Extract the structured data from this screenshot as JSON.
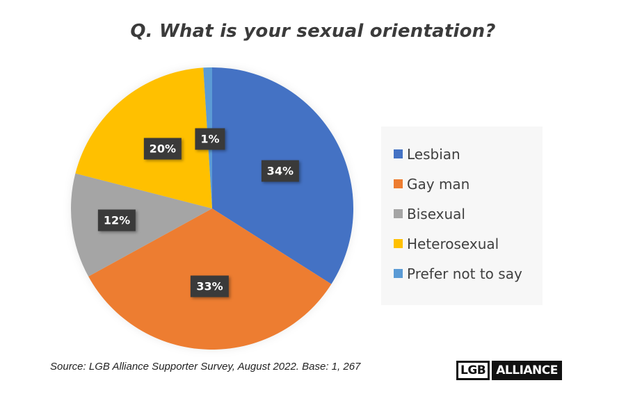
{
  "header": {
    "title": "Q. What is your sexual orientation?"
  },
  "legend": {
    "items": [
      {
        "label": "Lesbian",
        "color": "#4472C4"
      },
      {
        "label": "Gay man",
        "color": "#ED7D31"
      },
      {
        "label": "Bisexual",
        "color": "#A5A5A5"
      },
      {
        "label": "Heterosexual",
        "color": "#FFC000"
      },
      {
        "label": "Prefer not to say",
        "color": "#5B9BD5"
      }
    ]
  },
  "footer": {
    "source": "Source: LGB Alliance Supporter Survey, August 2022. Base: 1, 267",
    "logo_left": "LGB",
    "logo_right": "ALLIANCE"
  },
  "chart_data": {
    "type": "pie",
    "title": "Q. What is your sexual orientation?",
    "categories": [
      "Lesbian",
      "Gay man",
      "Bisexual",
      "Heterosexual",
      "Prefer not to say"
    ],
    "values": [
      34,
      33,
      12,
      20,
      1
    ],
    "value_labels": [
      "34%",
      "33%",
      "12%",
      "20%",
      "1%"
    ],
    "colors": [
      "#4472C4",
      "#ED7D31",
      "#A5A5A5",
      "#FFC000",
      "#5B9BD5"
    ],
    "start_angle_deg": 0,
    "direction": "clockwise",
    "legend_position": "right",
    "source": "LGB Alliance Supporter Survey, August 2022. Base: 1, 267"
  }
}
